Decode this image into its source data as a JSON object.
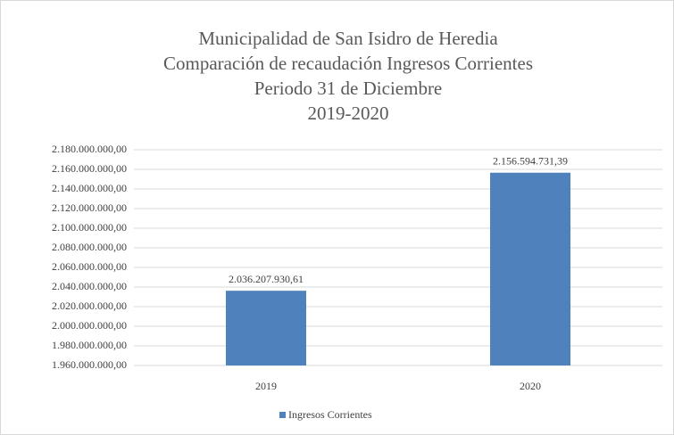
{
  "chart_data": {
    "type": "bar",
    "title": [
      "Municipalidad  de San Isidro de Heredia",
      "Comparación  de recaudación  Ingresos  Corrientes",
      "Periodo 31 de Diciembre",
      "2019-2020"
    ],
    "categories": [
      "2019",
      "2020"
    ],
    "series": [
      {
        "name": "Ingresos Corrientes",
        "color": "#4f81bd",
        "values": [
          2036207930.61,
          2156594731.39
        ],
        "value_labels": [
          "2.036.207.930,61",
          "2.156.594.731,39"
        ]
      }
    ],
    "ylim": [
      1960000000,
      2180000000
    ],
    "yticks": [
      {
        "value": 1960000000,
        "label": "1.960.000.000,00"
      },
      {
        "value": 1980000000,
        "label": "1.980.000.000,00"
      },
      {
        "value": 2000000000,
        "label": "2.000.000.000,00"
      },
      {
        "value": 2020000000,
        "label": "2.020.000.000,00"
      },
      {
        "value": 2040000000,
        "label": "2.040.000.000,00"
      },
      {
        "value": 2060000000,
        "label": "2.060.000.000,00"
      },
      {
        "value": 2080000000,
        "label": "2.080.000.000,00"
      },
      {
        "value": 2100000000,
        "label": "2.100.000.000,00"
      },
      {
        "value": 2120000000,
        "label": "2.120.000.000,00"
      },
      {
        "value": 2140000000,
        "label": "2.140.000.000,00"
      },
      {
        "value": 2160000000,
        "label": "2.160.000.000,00"
      },
      {
        "value": 2180000000,
        "label": "2.180.000.000,00"
      }
    ],
    "grid": true,
    "legend": "bottom"
  }
}
